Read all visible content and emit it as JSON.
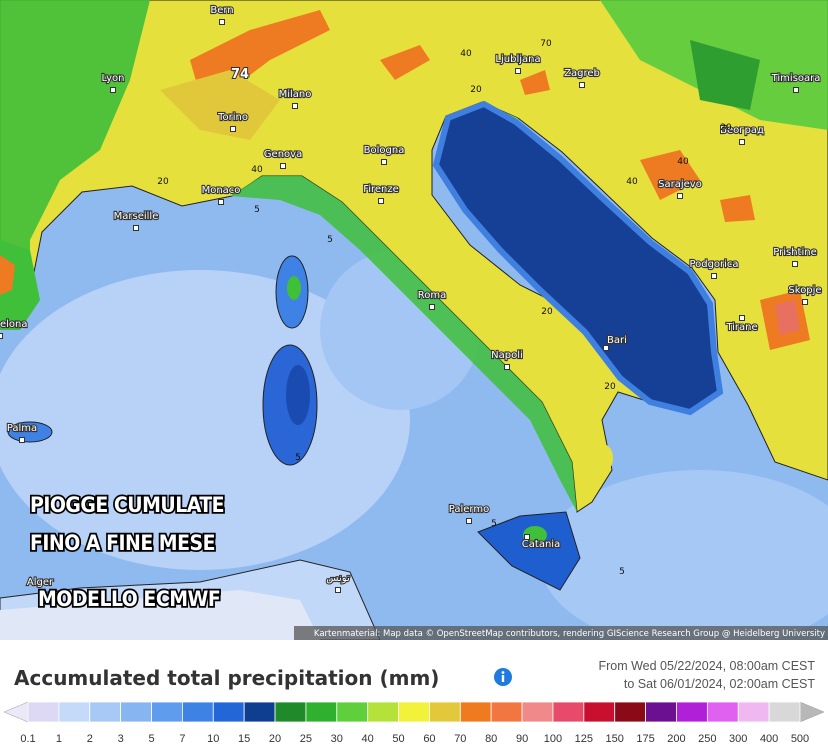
{
  "map": {
    "cities": [
      "Bern",
      "Lyon",
      "Milano",
      "Torino",
      "Genova",
      "Bologna",
      "Monaco",
      "Marseille",
      "Firenze",
      "Roma",
      "Napoli",
      "Bari",
      "Palermo",
      "Catania",
      "Palma",
      "Ljubljana",
      "Zagreb",
      "Timisoara",
      "Београд",
      "Sarajevo",
      "Podgorica",
      "Prishtine",
      "Skopje",
      "Tirane",
      "Alger",
      "elona",
      "تونس"
    ],
    "contour_labels": [
      74,
      40,
      40,
      20,
      5,
      5,
      20,
      20,
      40,
      40,
      70,
      20,
      20,
      5,
      5,
      5
    ],
    "overlay_text": [
      "PIOGGE CUMULATE",
      "FINO A FINE MESE",
      "MODELLO ECMWF"
    ],
    "attribution": "Kartenmaterial: Map data © OpenStreetMap contributors, rendering GIScience Research Group @ Heidelberg University"
  },
  "legend": {
    "title": "Accumulated total precipitation (mm)",
    "period": [
      "From Wed 05/22/2024, 08:00am CEST",
      "to Sat 06/01/2024, 02:00am CEST"
    ],
    "ticks": [
      0.1,
      1,
      2,
      3,
      5,
      7,
      10,
      15,
      20,
      25,
      30,
      40,
      50,
      60,
      70,
      80,
      90,
      100,
      125,
      150,
      175,
      200,
      250,
      300,
      400,
      500
    ],
    "colors": [
      "#ddd8f3",
      "#c5daf8",
      "#a8c9f6",
      "#86b5f2",
      "#5f9cee",
      "#3f82e6",
      "#2266d8",
      "#0f3d8f",
      "#1f8a2a",
      "#2fb02f",
      "#5fcf3c",
      "#b4e23a",
      "#f2f23a",
      "#e2c83a",
      "#ef7a1f",
      "#f2763f",
      "#f08a8a",
      "#e84a6a",
      "#c8102e",
      "#8a0a18",
      "#6a1090",
      "#b020d8",
      "#e060f0",
      "#f0b8f0",
      "#d8d8d8"
    ]
  }
}
